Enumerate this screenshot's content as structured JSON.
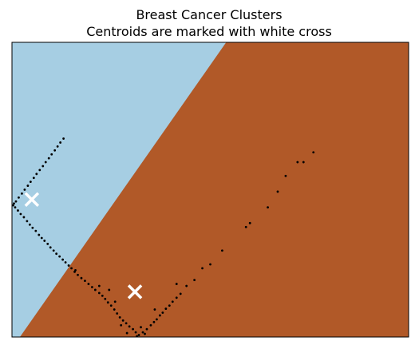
{
  "chart_data": {
    "type": "scatter",
    "title": "Breast Cancer Clusters",
    "subtitle": "Centroids are marked with white cross",
    "xlabel": "",
    "ylabel": "",
    "xlim": [
      0,
      10
    ],
    "ylim": [
      0,
      7.5
    ],
    "ticks_visible": false,
    "grid": false,
    "legend": "none",
    "regions": [
      {
        "cluster": 0,
        "color": "#a6cee3"
      },
      {
        "cluster": 1,
        "color": "#b15928"
      }
    ],
    "boundary": [
      [
        0.2,
        0
      ],
      [
        5.4,
        7.5
      ]
    ],
    "centroids": [
      [
        0.5,
        3.5
      ],
      [
        3.1,
        1.15
      ]
    ],
    "centroid_color": "#ffffff",
    "point_color": "#000000",
    "points": [
      [
        1.3,
        5.05
      ],
      [
        1.22,
        4.95
      ],
      [
        1.15,
        4.85
      ],
      [
        1.08,
        4.75
      ],
      [
        1.0,
        4.65
      ],
      [
        0.93,
        4.55
      ],
      [
        0.85,
        4.45
      ],
      [
        0.78,
        4.35
      ],
      [
        0.7,
        4.25
      ],
      [
        0.62,
        4.15
      ],
      [
        0.55,
        4.05
      ],
      [
        0.47,
        3.95
      ],
      [
        0.4,
        3.85
      ],
      [
        0.32,
        3.75
      ],
      [
        0.25,
        3.65
      ],
      [
        0.17,
        3.55
      ],
      [
        0.1,
        3.45
      ],
      [
        0.05,
        3.4
      ],
      [
        0.03,
        3.35
      ],
      [
        0.08,
        3.3
      ],
      [
        0.15,
        3.22
      ],
      [
        0.22,
        3.13
      ],
      [
        0.3,
        3.05
      ],
      [
        0.38,
        2.95
      ],
      [
        0.45,
        2.86
      ],
      [
        0.52,
        2.78
      ],
      [
        0.6,
        2.7
      ],
      [
        0.68,
        2.6
      ],
      [
        0.75,
        2.52
      ],
      [
        0.82,
        2.45
      ],
      [
        0.9,
        2.37
      ],
      [
        0.97,
        2.28
      ],
      [
        1.05,
        2.2
      ],
      [
        1.12,
        2.12
      ],
      [
        1.2,
        2.05
      ],
      [
        1.28,
        1.97
      ],
      [
        1.35,
        1.9
      ],
      [
        1.43,
        1.82
      ],
      [
        1.5,
        1.75
      ],
      [
        1.58,
        1.66
      ],
      [
        1.66,
        1.58
      ],
      [
        1.75,
        1.5
      ],
      [
        1.84,
        1.43
      ],
      [
        1.93,
        1.35
      ],
      [
        2.02,
        1.27
      ],
      [
        2.1,
        1.2
      ],
      [
        2.2,
        1.12
      ],
      [
        2.28,
        1.05
      ],
      [
        2.35,
        0.97
      ],
      [
        2.42,
        0.88
      ],
      [
        2.5,
        0.8
      ],
      [
        2.58,
        0.7
      ],
      [
        2.65,
        0.6
      ],
      [
        2.72,
        0.5
      ],
      [
        2.8,
        0.42
      ],
      [
        2.88,
        0.35
      ],
      [
        2.96,
        0.27
      ],
      [
        3.05,
        0.2
      ],
      [
        3.12,
        0.12
      ],
      [
        3.2,
        0.05
      ],
      [
        3.3,
        0.12
      ],
      [
        3.4,
        0.2
      ],
      [
        3.5,
        0.3
      ],
      [
        3.58,
        0.38
      ],
      [
        3.65,
        0.45
      ],
      [
        3.73,
        0.55
      ],
      [
        3.8,
        0.62
      ],
      [
        3.88,
        0.72
      ],
      [
        3.97,
        0.8
      ],
      [
        4.05,
        0.9
      ],
      [
        4.15,
        1.0
      ],
      [
        4.25,
        1.1
      ],
      [
        4.4,
        1.3
      ],
      [
        4.6,
        1.45
      ],
      [
        4.8,
        1.75
      ],
      [
        5.0,
        1.85
      ],
      [
        5.3,
        2.2
      ],
      [
        5.9,
        2.8
      ],
      [
        6.0,
        2.9
      ],
      [
        6.45,
        3.3
      ],
      [
        6.7,
        3.7
      ],
      [
        6.9,
        4.1
      ],
      [
        7.2,
        4.45
      ],
      [
        7.35,
        4.45
      ],
      [
        7.6,
        4.7
      ],
      [
        2.2,
        1.3
      ],
      [
        2.6,
        0.9
      ],
      [
        2.9,
        0.1
      ],
      [
        3.15,
        0.02
      ],
      [
        3.35,
        0.08
      ],
      [
        4.15,
        1.35
      ],
      [
        2.45,
        1.2
      ],
      [
        3.6,
        0.7
      ],
      [
        2.75,
        0.3
      ],
      [
        3.25,
        0.25
      ],
      [
        1.6,
        1.7
      ]
    ]
  }
}
